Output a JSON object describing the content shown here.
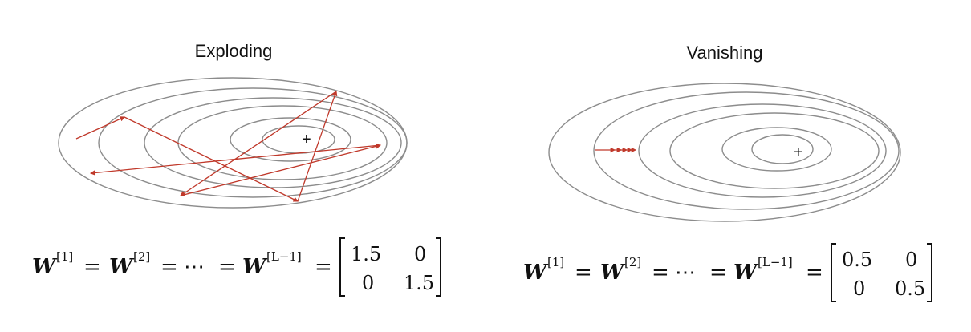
{
  "panels": {
    "left": {
      "title": "Exploding",
      "optimum_marker": "+",
      "equation": {
        "lhs": "W",
        "superscripts": [
          "[1]",
          "[2]",
          "[L−1]"
        ],
        "equals": "=",
        "dots": "⋯",
        "matrix": [
          [
            "1.5",
            "0"
          ],
          [
            "0",
            "1.5"
          ]
        ]
      }
    },
    "right": {
      "title": "Vanishing",
      "optimum_marker": "+",
      "equation": {
        "lhs": "W",
        "superscripts": [
          "[1]",
          "[2]",
          "[L−1]"
        ],
        "equals": "=",
        "dots": "⋯",
        "matrix": [
          [
            "0.5",
            "0"
          ],
          [
            "0",
            "0.5"
          ]
        ]
      }
    }
  },
  "colors": {
    "contour": "#8c8c8c",
    "path": "#c0392b",
    "text": "#111111"
  }
}
